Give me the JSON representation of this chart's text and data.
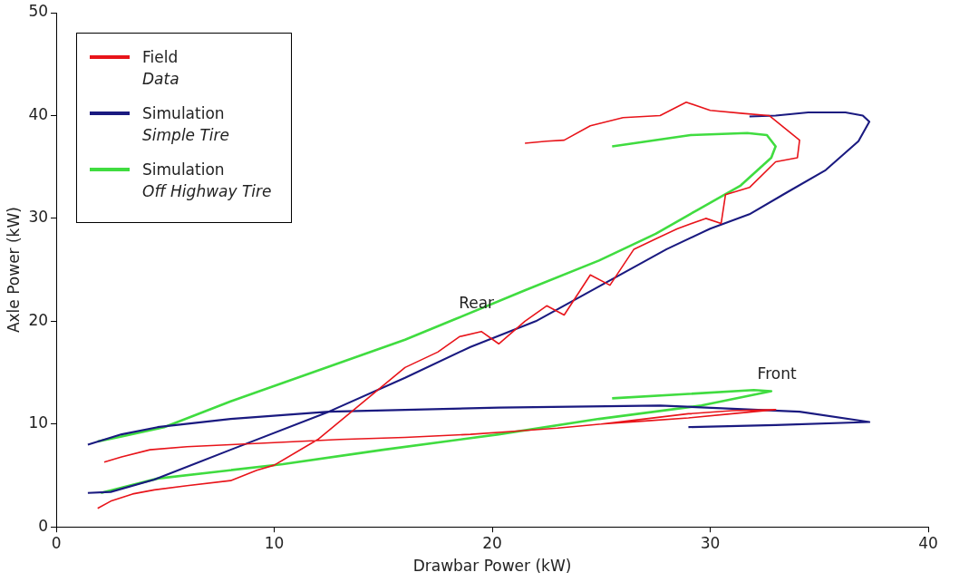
{
  "chart_data": {
    "type": "line",
    "xlabel": "Drawbar Power (kW)",
    "ylabel": "Axle Power (kW)",
    "xlim": [
      0,
      40
    ],
    "xticks": [
      0,
      10,
      20,
      30,
      40
    ],
    "ylim": [
      0,
      50
    ],
    "yticks": [
      0,
      10,
      20,
      30,
      40,
      50
    ],
    "grid": false,
    "legend": "top left",
    "marker": "none",
    "line_style": "solid",
    "annotations": [
      {
        "text": "Rear",
        "x": 18.3,
        "y": 20.2
      },
      {
        "text": "Front",
        "x": 32,
        "y": 13.3
      }
    ],
    "series": [
      {
        "name": "Field Data",
        "color": "#e8141a",
        "x": [
          1.9,
          2.5,
          3.5,
          4.5,
          6,
          8,
          9.2,
          10,
          12,
          14,
          16,
          17.5,
          18.5,
          19.5,
          20.3,
          21.5,
          22.5,
          23.3,
          24.5,
          25.4,
          26.5,
          27.5,
          28.5,
          29.8,
          30.5,
          30.7,
          31.8,
          33,
          34,
          34.1,
          32.7,
          31.5,
          30,
          28.9,
          27.7,
          26,
          24.5,
          23.3,
          22.5,
          21.5,
          null,
          2.2,
          3,
          4.3,
          6,
          8,
          10,
          13,
          16,
          19,
          21,
          23,
          25,
          27,
          29,
          31,
          33,
          31,
          29,
          27,
          25
        ],
        "values": [
          1.8,
          2.5,
          3.2,
          3.6,
          4,
          4.5,
          5.5,
          6,
          8.5,
          12,
          15.5,
          17,
          18.5,
          19,
          17.8,
          20,
          21.5,
          20.6,
          24.5,
          23.5,
          27,
          28,
          29,
          30,
          29.5,
          32.3,
          33,
          35.5,
          35.9,
          37.6,
          40,
          40.2,
          40.5,
          41.3,
          40,
          39.8,
          39,
          37.6,
          37.5,
          37.3,
          null,
          6.3,
          6.8,
          7.5,
          7.8,
          8,
          8.2,
          8.5,
          8.7,
          9,
          9.3,
          9.6,
          10,
          10.5,
          11,
          11.3,
          11.4,
          11,
          10.6,
          10.3,
          10
        ]
      },
      {
        "name": "Simulation Simple Tire",
        "color": "#1a1a80",
        "x": [
          1.45,
          2.5,
          4.5,
          8,
          12.5,
          16,
          19,
          22,
          25,
          28,
          30,
          31.8,
          33.5,
          35.3,
          36.8,
          37.3,
          37,
          36.2,
          34.5,
          33,
          31.8,
          null,
          1.45,
          3,
          4.65,
          8,
          12.5,
          20.3,
          27.7,
          34.1,
          37.3,
          33,
          29
        ],
        "values": [
          3.3,
          3.4,
          4.6,
          7.5,
          11.2,
          14.5,
          17.5,
          20,
          23.5,
          27,
          29,
          30.4,
          32.5,
          34.7,
          37.5,
          39.4,
          40,
          40.3,
          40.3,
          40,
          39.9,
          null,
          8,
          9,
          9.7,
          10.5,
          11.2,
          11.6,
          11.8,
          11.2,
          10.2,
          9.9,
          9.7
        ]
      },
      {
        "name": "Simulation Off Highway Tire",
        "color": "#40dc40",
        "x": [
          1.9,
          3,
          4.95,
          8,
          12,
          16,
          18.3,
          21.5,
          24.9,
          27.5,
          29.4,
          31.4,
          32.8,
          33,
          32.6,
          31.7,
          29.1,
          25.5,
          null,
          2.05,
          4.65,
          10.4,
          15,
          20.3,
          24.9,
          29.6,
          32.8,
          32,
          25.5
        ],
        "values": [
          8.3,
          8.8,
          9.7,
          12.2,
          15.2,
          18.2,
          20.2,
          23,
          25.9,
          28.5,
          30.8,
          33.2,
          35.9,
          37,
          38.1,
          38.3,
          38.1,
          37,
          null,
          3.3,
          4.7,
          6.1,
          7.5,
          9,
          10.5,
          11.8,
          13.2,
          13.3,
          12.5
        ]
      }
    ]
  }
}
